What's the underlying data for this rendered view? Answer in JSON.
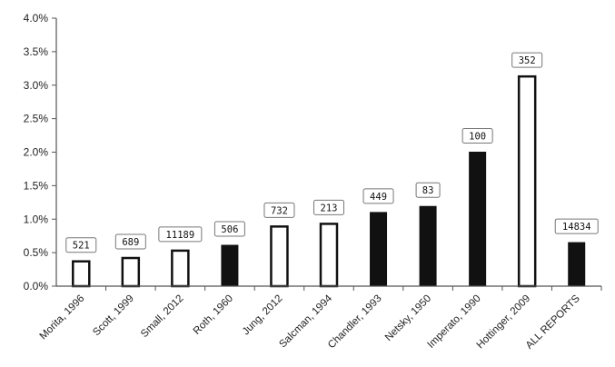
{
  "chart_data": {
    "type": "bar",
    "categories": [
      "Morita, 1996",
      "Scott, 1999",
      "Small, 2012",
      "Roth, 1960",
      "Jung, 2012",
      "Salcman, 1994",
      "Chandler, 1993",
      "Netsky, 1950",
      "Imperato, 1990",
      "Hottinger, 2009",
      "ALL REPORTS"
    ],
    "values": [
      0.37,
      0.42,
      0.53,
      0.61,
      0.89,
      0.93,
      1.1,
      1.19,
      2.0,
      3.13,
      0.65
    ],
    "data_labels": [
      "521",
      "689",
      "11189",
      "506",
      "732",
      "213",
      "449",
      "83",
      "100",
      "352",
      "14834"
    ],
    "bar_fill": [
      "white",
      "white",
      "white",
      "black",
      "white",
      "white",
      "black",
      "black",
      "black",
      "white",
      "black"
    ],
    "y_ticks": [
      "0.0%",
      "0.5%",
      "1.0%",
      "1.5%",
      "2.0%",
      "2.5%",
      "3.0%",
      "3.5%",
      "4.0%"
    ],
    "ylim": [
      0,
      4.0
    ],
    "title": "",
    "xlabel": "",
    "ylabel": "",
    "grid": false,
    "colors": {
      "dark": "#111111",
      "light": "#ffffff",
      "axis": "#555555"
    }
  }
}
